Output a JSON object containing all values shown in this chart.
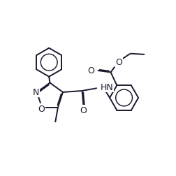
{
  "bg_color": "#ffffff",
  "line_color": "#1a1a2e",
  "line_width": 1.4,
  "dbo": 0.055,
  "font_size": 9,
  "figsize": [
    2.53,
    2.53
  ],
  "dpi": 100,
  "xlim": [
    0,
    10
  ],
  "ylim": [
    0,
    10
  ]
}
